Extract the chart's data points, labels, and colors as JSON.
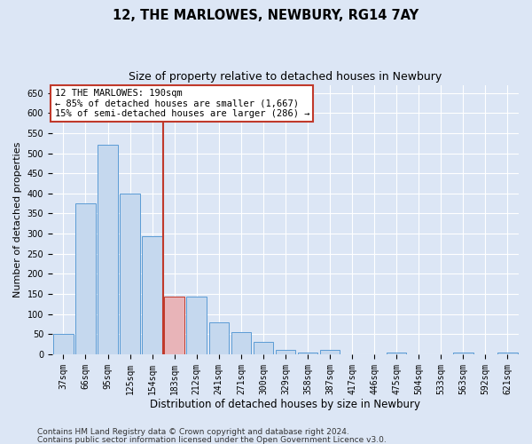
{
  "title": "12, THE MARLOWES, NEWBURY, RG14 7AY",
  "subtitle": "Size of property relative to detached houses in Newbury",
  "xlabel": "Distribution of detached houses by size in Newbury",
  "ylabel": "Number of detached properties",
  "categories": [
    "37sqm",
    "66sqm",
    "95sqm",
    "125sqm",
    "154sqm",
    "183sqm",
    "212sqm",
    "241sqm",
    "271sqm",
    "300sqm",
    "329sqm",
    "358sqm",
    "387sqm",
    "417sqm",
    "446sqm",
    "475sqm",
    "504sqm",
    "533sqm",
    "563sqm",
    "592sqm",
    "621sqm"
  ],
  "values": [
    50,
    375,
    520,
    400,
    293,
    143,
    143,
    80,
    55,
    30,
    12,
    5,
    12,
    0,
    0,
    4,
    0,
    0,
    4,
    0,
    4
  ],
  "bar_color": "#c5d8ee",
  "bar_edge_color": "#5b9bd5",
  "highlight_bar_index": 5,
  "highlight_bar_color": "#e8b4b8",
  "highlight_bar_edge_color": "#c0392b",
  "highlight_line_color": "#c0392b",
  "annotation_line1": "12 THE MARLOWES: 190sqm",
  "annotation_line2": "← 85% of detached houses are smaller (1,667)",
  "annotation_line3": "15% of semi-detached houses are larger (286) →",
  "annotation_box_color": "white",
  "annotation_box_edge_color": "#c0392b",
  "ylim": [
    0,
    670
  ],
  "yticks": [
    0,
    50,
    100,
    150,
    200,
    250,
    300,
    350,
    400,
    450,
    500,
    550,
    600,
    650
  ],
  "bg_color": "#dce6f5",
  "grid_color": "white",
  "title_fontsize": 10.5,
  "subtitle_fontsize": 9,
  "ylabel_fontsize": 8,
  "xlabel_fontsize": 8.5,
  "tick_fontsize": 7,
  "annotation_fontsize": 7.5,
  "footer_fontsize": 6.5,
  "footer_line1": "Contains HM Land Registry data © Crown copyright and database right 2024.",
  "footer_line2": "Contains public sector information licensed under the Open Government Licence v3.0."
}
